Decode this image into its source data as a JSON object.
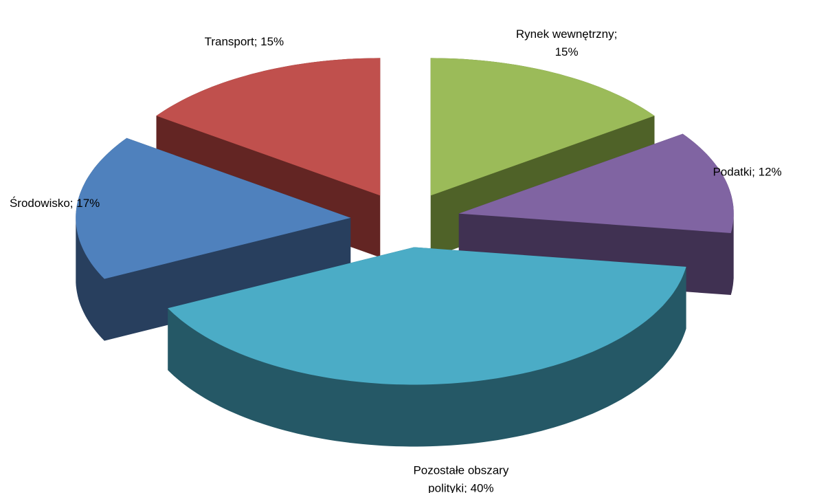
{
  "chart_data": {
    "type": "pie",
    "values": [
      15,
      12,
      40,
      17,
      15
    ],
    "value_labels": [
      [
        "Rynek wewnętrzny;",
        "15%"
      ],
      [
        "Podatki; 12%"
      ],
      [
        "Pozostałe obszary",
        "polityki; 40%"
      ],
      [
        "Środowisko; 17%"
      ],
      [
        "Transport; 15%"
      ]
    ],
    "colors": [
      "#9bbb59",
      "#8064a2",
      "#4bacc6",
      "#4f81bd",
      "#c0504d"
    ],
    "side_colors": [
      "#4f6228",
      "#403152",
      "#255866",
      "#283f5e",
      "#632523"
    ]
  }
}
